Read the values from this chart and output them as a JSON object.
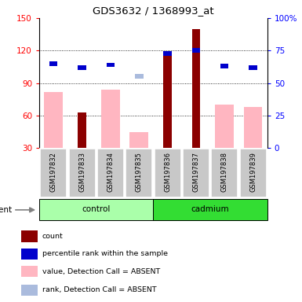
{
  "title": "GDS3632 / 1368993_at",
  "samples": [
    "GSM197832",
    "GSM197833",
    "GSM197834",
    "GSM197835",
    "GSM197836",
    "GSM197837",
    "GSM197838",
    "GSM197839"
  ],
  "n_samples": 8,
  "n_control": 4,
  "n_cadmium": 4,
  "ylim_left": [
    30,
    150
  ],
  "ylim_right": [
    0,
    100
  ],
  "yticks_left": [
    30,
    60,
    90,
    120,
    150
  ],
  "yticks_right": [
    0,
    25,
    50,
    75,
    100
  ],
  "ytick_labels_right": [
    "0",
    "25",
    "50",
    "75",
    "100%"
  ],
  "count_values": [
    0,
    63,
    0,
    0,
    115,
    140,
    0,
    0
  ],
  "rank_values": [
    65,
    62,
    64,
    0,
    73,
    75,
    63,
    62
  ],
  "absent_value_values": [
    82,
    0,
    84,
    45,
    0,
    0,
    70,
    68
  ],
  "absent_rank_values": [
    0,
    0,
    0,
    55,
    0,
    0,
    0,
    0
  ],
  "color_count": "#8B0000",
  "color_rank": "#0000CC",
  "color_absent_value": "#FFB6C1",
  "color_absent_rank": "#AABBDD",
  "color_control": "#AAFFAA",
  "color_cadmium": "#33DD33",
  "group_label": "agent",
  "control_label": "control",
  "cadmium_label": "cadmium",
  "sample_bg": "#C8C8C8",
  "legend_items": [
    {
      "label": "count",
      "color": "#8B0000"
    },
    {
      "label": "percentile rank within the sample",
      "color": "#0000CC"
    },
    {
      "label": "value, Detection Call = ABSENT",
      "color": "#FFB6C1"
    },
    {
      "label": "rank, Detection Call = ABSENT",
      "color": "#AABBDD"
    }
  ],
  "grid_lines": [
    60,
    90,
    120
  ]
}
